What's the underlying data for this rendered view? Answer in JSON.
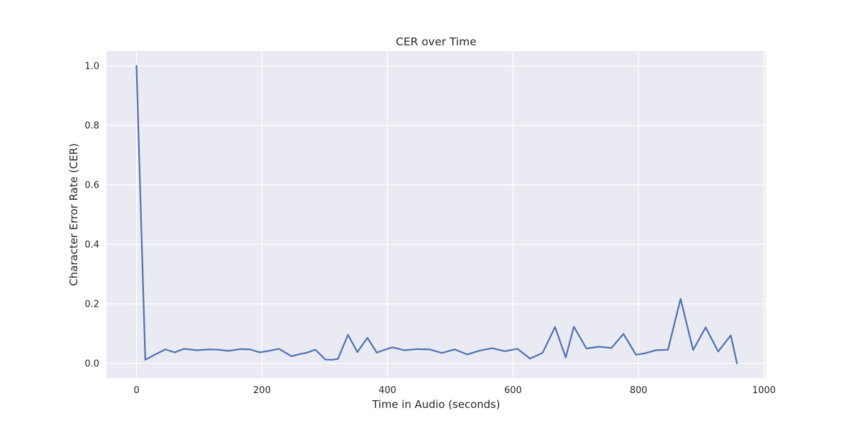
{
  "chart_data": {
    "type": "line",
    "title": "CER over Time",
    "xlabel": "Time in Audio (seconds)",
    "ylabel": "Character Error Rate (CER)",
    "xlim": [
      -48,
      1003
    ],
    "ylim": [
      -0.05,
      1.05
    ],
    "xticks": [
      0,
      200,
      400,
      600,
      800,
      1000
    ],
    "yticks": [
      0.0,
      0.2,
      0.4,
      0.6,
      0.8,
      1.0
    ],
    "xtick_labels": [
      "0",
      "200",
      "400",
      "600",
      "800",
      "1000"
    ],
    "ytick_labels": [
      "0.0",
      "0.2",
      "0.4",
      "0.6",
      "0.8",
      "1.0"
    ],
    "grid": true,
    "style": "darkgrid",
    "line_color": "#4c72b0",
    "series": [
      {
        "x": [
          0,
          14,
          30,
          46,
          61,
          76,
          96,
          116,
          131,
          146,
          166,
          181,
          196,
          211,
          227,
          247,
          262,
          270,
          285,
          301,
          311,
          321,
          337,
          352,
          368,
          383,
          393,
          408,
          427,
          447,
          467,
          487,
          507,
          527,
          547,
          567,
          587,
          607,
          627,
          647,
          667,
          684,
          697,
          717,
          737,
          757,
          776,
          796,
          811,
          827,
          847,
          867,
          887,
          907,
          927,
          947,
          957
        ],
        "y": [
          1.0,
          0.012,
          0.03,
          0.047,
          0.037,
          0.049,
          0.044,
          0.047,
          0.046,
          0.042,
          0.048,
          0.047,
          0.037,
          0.042,
          0.049,
          0.024,
          0.032,
          0.035,
          0.046,
          0.013,
          0.012,
          0.015,
          0.096,
          0.038,
          0.086,
          0.036,
          0.044,
          0.054,
          0.044,
          0.048,
          0.047,
          0.035,
          0.047,
          0.03,
          0.043,
          0.051,
          0.041,
          0.049,
          0.016,
          0.035,
          0.122,
          0.02,
          0.123,
          0.05,
          0.056,
          0.052,
          0.099,
          0.029,
          0.034,
          0.044,
          0.046,
          0.217,
          0.045,
          0.121,
          0.04,
          0.094,
          0.0
        ]
      }
    ]
  }
}
